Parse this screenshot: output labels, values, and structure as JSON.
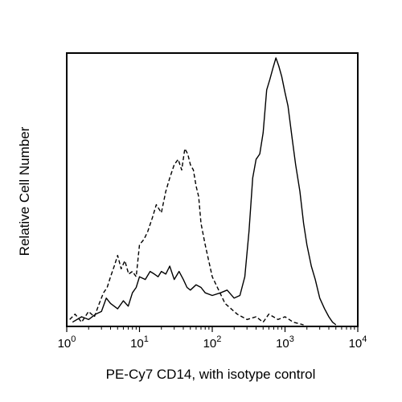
{
  "chart_data": {
    "type": "line",
    "title": "",
    "xlabel": "PE-Cy7 CD14, with isotype control",
    "ylabel": "Relative Cell Number",
    "xscale": "log",
    "xlim": [
      1,
      10000
    ],
    "ylim": [
      0,
      100
    ],
    "x_ticks": [
      {
        "value": 1,
        "base": "10",
        "exp": "0"
      },
      {
        "value": 10,
        "base": "10",
        "exp": "1"
      },
      {
        "value": 100,
        "base": "10",
        "exp": "2"
      },
      {
        "value": 1000,
        "base": "10",
        "exp": "3"
      },
      {
        "value": 10000,
        "base": "10",
        "exp": "4"
      }
    ],
    "grid": false,
    "legend": "none",
    "series": [
      {
        "style": "dashed",
        "color": "#000000",
        "x": [
          1.1,
          1.3,
          1.6,
          2.0,
          2.4,
          2.8,
          3.2,
          3.6,
          4.0,
          4.5,
          5.0,
          5.6,
          6.3,
          7.1,
          8.0,
          9.0,
          10,
          11.5,
          13,
          15,
          17,
          20,
          23,
          26,
          30,
          34,
          38,
          42,
          46,
          50,
          55,
          60,
          65,
          70,
          80,
          100,
          150,
          220,
          300,
          400,
          500,
          600,
          800,
          1000,
          1300,
          1800
        ],
        "y": [
          2,
          4,
          1,
          5,
          3,
          8,
          12,
          14,
          18,
          22,
          26,
          21,
          24,
          19,
          20,
          18,
          30,
          32,
          35,
          40,
          45,
          42,
          50,
          55,
          60,
          62,
          58,
          66,
          64,
          60,
          58,
          52,
          48,
          38,
          30,
          18,
          8,
          4,
          2,
          3,
          1,
          4,
          2,
          3,
          1,
          0
        ]
      },
      {
        "style": "solid",
        "color": "#000000",
        "x": [
          1.2,
          1.6,
          2.0,
          2.5,
          3.0,
          3.5,
          4.0,
          5.0,
          6.0,
          7.0,
          8.0,
          9.0,
          10,
          12,
          14,
          16,
          18,
          20,
          23,
          26,
          30,
          35,
          40,
          45,
          50,
          60,
          70,
          80,
          100,
          130,
          160,
          200,
          240,
          280,
          320,
          360,
          400,
          450,
          500,
          560,
          620,
          680,
          750,
          820,
          900,
          1000,
          1100,
          1250,
          1400,
          1600,
          1800,
          2000,
          2300,
          2600,
          3000,
          3500,
          4000,
          4500,
          5000
        ],
        "y": [
          1,
          3,
          2,
          4,
          5,
          10,
          8,
          6,
          9,
          7,
          12,
          14,
          18,
          17,
          20,
          19,
          18,
          20,
          19,
          22,
          17,
          20,
          17,
          14,
          13,
          15,
          14,
          12,
          11,
          12,
          13,
          10,
          11,
          18,
          35,
          55,
          62,
          64,
          72,
          88,
          92,
          96,
          100,
          97,
          93,
          87,
          82,
          70,
          60,
          50,
          38,
          30,
          22,
          17,
          10,
          6,
          3,
          1,
          0
        ]
      }
    ]
  }
}
